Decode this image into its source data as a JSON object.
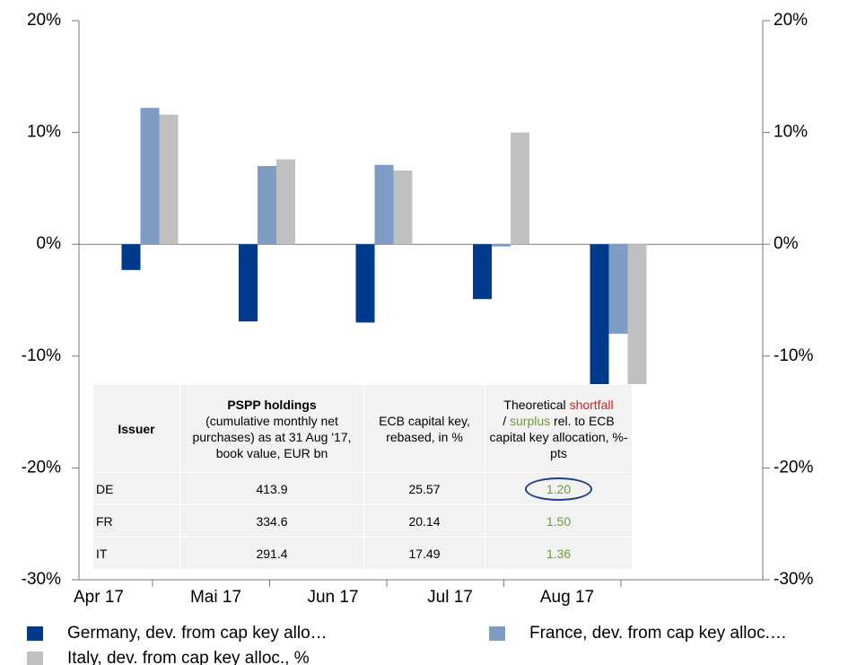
{
  "chart_data": {
    "type": "bar",
    "categories": [
      "Apr 17",
      "Mai 17",
      "Jun 17",
      "Jul 17",
      "Aug 17"
    ],
    "series": [
      {
        "name": "Germany, dev. from cap key allo…",
        "color": "#003a8c",
        "values": [
          -2.3,
          -6.9,
          -7.0,
          -4.9,
          -23.3
        ]
      },
      {
        "name": "France, dev. from cap key alloc.…",
        "color": "#7f9dc4",
        "values": [
          12.2,
          7.0,
          7.1,
          -0.2,
          -8.0
        ]
      },
      {
        "name": "Italy, dev. from cap key alloc., %",
        "color": "#c0c0c0",
        "values": [
          11.6,
          7.6,
          6.6,
          10.0,
          -12.5
        ]
      }
    ],
    "ylim": [
      -30,
      20
    ],
    "yticks": [
      {
        "value": -30,
        "label": "-30%"
      },
      {
        "value": -20,
        "label": "-20%"
      },
      {
        "value": -10,
        "label": "-10%"
      },
      {
        "value": 0,
        "label": "0%"
      },
      {
        "value": 10,
        "label": "10%"
      },
      {
        "value": 20,
        "label": "20%"
      }
    ],
    "y2lim": [
      -30,
      20
    ],
    "y2ticks": [
      {
        "value": -30,
        "label": "-30%"
      },
      {
        "value": -20,
        "label": "-20%"
      },
      {
        "value": -10,
        "label": "-10%"
      },
      {
        "value": 0,
        "label": "0%"
      },
      {
        "value": 10,
        "label": "10%"
      },
      {
        "value": 20,
        "label": "20%"
      }
    ],
    "grid": false
  },
  "table": {
    "header": {
      "issuer": "Issuer",
      "holdings_title": "PSPP holdings",
      "holdings_text": "(cumulative monthly net purchases) as at 31 Aug '17, book value, EUR bn",
      "key": "ECB capital key, rebased, in %",
      "gap": [
        "Theoretical",
        "shortfall",
        "/",
        "surplus",
        "rel. to ECB capital key allocation, %-pts"
      ]
    },
    "rows": [
      [
        "DE",
        "413.9",
        "25.57",
        "1.20"
      ],
      [
        "FR",
        "334.6",
        "20.14",
        "1.50"
      ],
      [
        "IT",
        "291.4",
        "17.49",
        "1.36"
      ]
    ]
  }
}
